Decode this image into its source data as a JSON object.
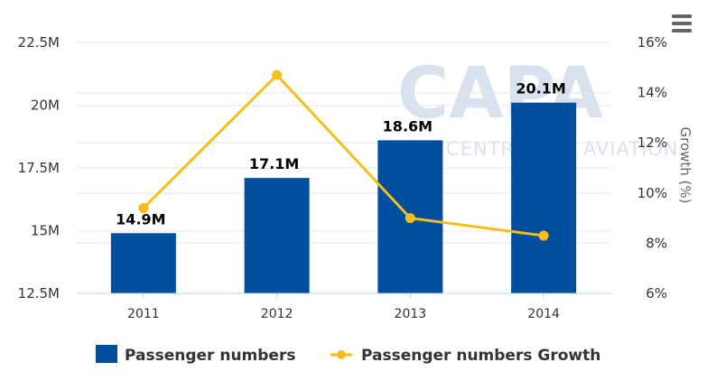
{
  "chart_data": {
    "type": "bar",
    "categories": [
      "2011",
      "2012",
      "2013",
      "2014"
    ],
    "series": [
      {
        "name": "Passenger numbers",
        "kind": "bar",
        "axis": "left",
        "color": "#004f9e",
        "values": [
          14.9,
          17.1,
          18.6,
          20.1
        ],
        "labels": [
          "14.9M",
          "17.1M",
          "18.6M",
          "20.1M"
        ]
      },
      {
        "name": "Passenger numbers Growth",
        "kind": "line",
        "axis": "right",
        "color": "#f6be1a",
        "values": [
          9.4,
          14.7,
          9.0,
          8.3
        ]
      }
    ],
    "y_left": {
      "min": 12.5,
      "max": 22.5,
      "ticks": [
        12.5,
        15,
        17.5,
        20,
        22.5
      ],
      "tick_labels": [
        "12.5M",
        "15M",
        "17.5M",
        "20M",
        "22.5M"
      ]
    },
    "y_right": {
      "label": "Growth (%)",
      "min": 6,
      "max": 16,
      "ticks": [
        6,
        8,
        10,
        12,
        14,
        16
      ],
      "tick_labels": [
        "6%",
        "8%",
        "10%",
        "12%",
        "14%",
        "16%"
      ]
    },
    "grid": true,
    "legend_position": "bottom"
  },
  "watermark": {
    "main": "CAPA",
    "sub": "CENTRE FOR AVIATION"
  },
  "menu_icon": "hamburger-menu-icon"
}
